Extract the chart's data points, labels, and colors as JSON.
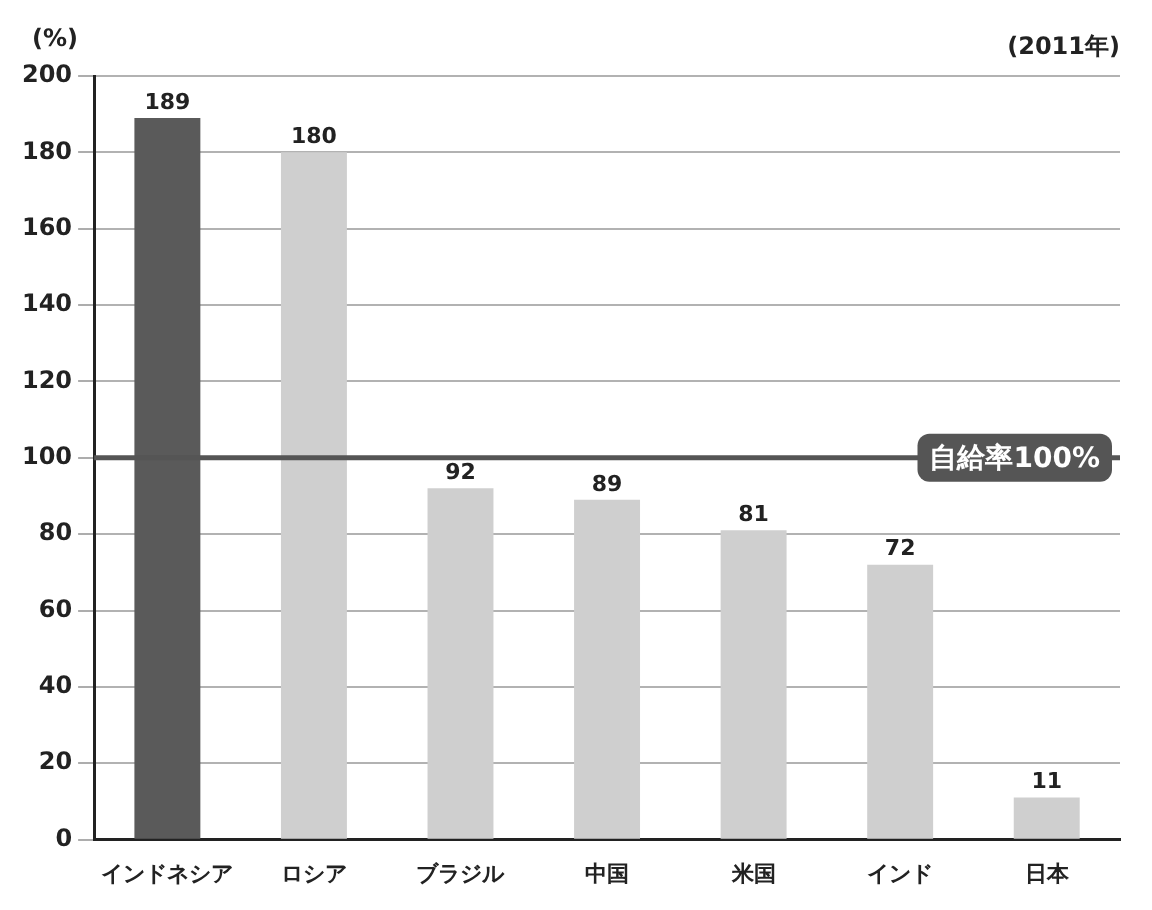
{
  "chart_data": {
    "type": "bar",
    "ylabel": "(%)",
    "annotations": [
      "(2011年)"
    ],
    "categories": [
      "インドネシア",
      "ロシア",
      "ブラジル",
      "中国",
      "米国",
      "インド",
      "日本"
    ],
    "values": [
      189,
      180,
      92,
      89,
      81,
      72,
      11
    ],
    "colors": [
      "#5a5a5a",
      "#cfcfcf",
      "#cfcfcf",
      "#cfcfcf",
      "#cfcfcf",
      "#cfcfcf",
      "#cfcfcf"
    ],
    "ylim": [
      0,
      200
    ],
    "yticks": [
      0,
      20,
      40,
      60,
      80,
      100,
      120,
      140,
      160,
      180,
      200
    ],
    "grid": "y",
    "data_labels": true,
    "ref_lines": [
      {
        "axis": "y",
        "value": 100,
        "label": "自給率100%",
        "color": "#555555"
      }
    ]
  }
}
